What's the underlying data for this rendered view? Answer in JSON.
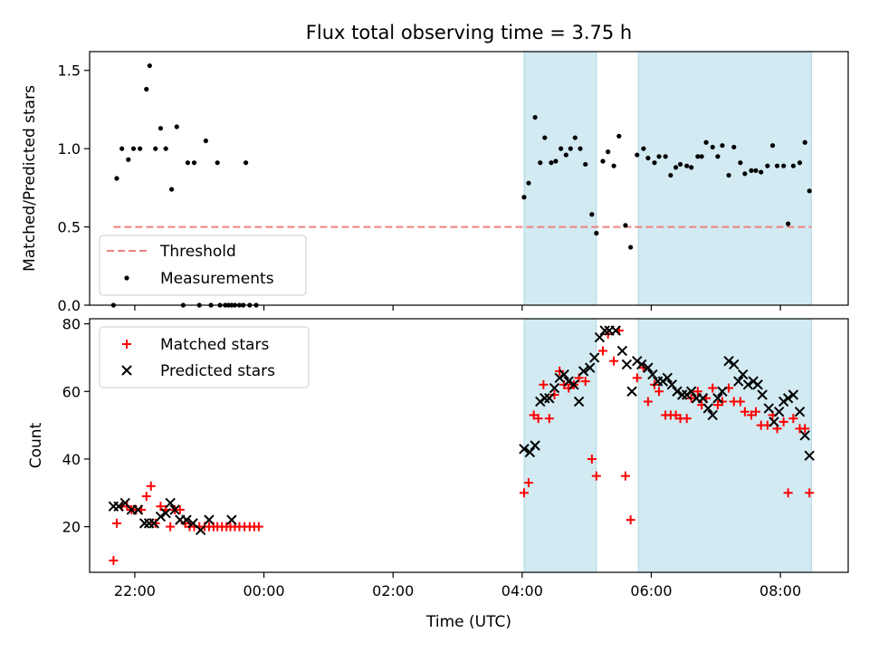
{
  "chart_data": [
    {
      "type": "scatter",
      "title": "Flux total observing time = 3.75 h",
      "ylabel": "Matched/Predicted stars",
      "ylim": [
        0,
        1.62
      ],
      "yticks": [
        0.0,
        0.5,
        1.0,
        1.5
      ],
      "ytick_labels": [
        "0.0",
        "0.5",
        "1.0",
        "1.5"
      ],
      "xlim": [
        -2.7,
        9.05
      ],
      "shaded_ranges": [
        [
          4.03,
          5.15
        ],
        [
          5.8,
          8.48
        ]
      ],
      "shade_color": "#add8e6",
      "threshold": {
        "name": "Threshold",
        "y": 0.5,
        "x_range": [
          -2.33,
          8.48
        ],
        "color": "#f08080"
      },
      "legend_position": "lower-left",
      "series": [
        {
          "name": "Measurements",
          "color": "#000000",
          "marker": "dot",
          "points": [
            [
              -2.33,
              0
            ],
            [
              -2.28,
              0.81
            ],
            [
              -2.2,
              1.0
            ],
            [
              -2.1,
              0.93
            ],
            [
              -2.02,
              1.0
            ],
            [
              -1.92,
              1.0
            ],
            [
              -1.82,
              1.38
            ],
            [
              -1.77,
              1.53
            ],
            [
              -1.68,
              1.0
            ],
            [
              -1.6,
              1.13
            ],
            [
              -1.52,
              1.0
            ],
            [
              -1.43,
              0.74
            ],
            [
              -1.35,
              1.14
            ],
            [
              -1.25,
              0.0
            ],
            [
              -1.18,
              0.91
            ],
            [
              -1.08,
              0.91
            ],
            [
              -1.0,
              0.0
            ],
            [
              -0.9,
              1.05
            ],
            [
              -0.82,
              0.0
            ],
            [
              -0.72,
              0.91
            ],
            [
              -0.68,
              0.0
            ],
            [
              -0.6,
              0.0
            ],
            [
              -0.55,
              0.0
            ],
            [
              -0.5,
              0.0
            ],
            [
              -0.45,
              0.0
            ],
            [
              -0.38,
              0.0
            ],
            [
              -0.32,
              0.0
            ],
            [
              -0.28,
              0.91
            ],
            [
              -0.22,
              0.0
            ],
            [
              -0.12,
              0.0
            ],
            [
              4.03,
              0.69
            ],
            [
              4.1,
              0.78
            ],
            [
              4.2,
              1.2
            ],
            [
              4.28,
              0.91
            ],
            [
              4.35,
              1.07
            ],
            [
              4.45,
              0.91
            ],
            [
              4.52,
              0.92
            ],
            [
              4.6,
              1.0
            ],
            [
              4.68,
              0.96
            ],
            [
              4.75,
              1.0
            ],
            [
              4.82,
              1.07
            ],
            [
              4.9,
              1.0
            ],
            [
              4.98,
              0.9
            ],
            [
              5.08,
              0.58
            ],
            [
              5.15,
              0.46
            ],
            [
              5.25,
              0.92
            ],
            [
              5.33,
              0.98
            ],
            [
              5.42,
              0.89
            ],
            [
              5.5,
              1.08
            ],
            [
              5.6,
              0.51
            ],
            [
              5.68,
              0.37
            ],
            [
              5.78,
              0.96
            ],
            [
              5.88,
              1.0
            ],
            [
              5.95,
              0.94
            ],
            [
              6.05,
              0.91
            ],
            [
              6.12,
              0.95
            ],
            [
              6.22,
              0.95
            ],
            [
              6.3,
              0.83
            ],
            [
              6.38,
              0.88
            ],
            [
              6.45,
              0.9
            ],
            [
              6.55,
              0.89
            ],
            [
              6.62,
              0.88
            ],
            [
              6.72,
              0.95
            ],
            [
              6.78,
              0.95
            ],
            [
              6.85,
              1.04
            ],
            [
              6.95,
              1.01
            ],
            [
              7.03,
              0.95
            ],
            [
              7.1,
              1.02
            ],
            [
              7.2,
              0.83
            ],
            [
              7.28,
              1.01
            ],
            [
              7.38,
              0.91
            ],
            [
              7.45,
              0.84
            ],
            [
              7.55,
              0.86
            ],
            [
              7.62,
              0.86
            ],
            [
              7.7,
              0.85
            ],
            [
              7.8,
              0.89
            ],
            [
              7.88,
              1.02
            ],
            [
              7.95,
              0.89
            ],
            [
              8.05,
              0.89
            ],
            [
              8.12,
              0.52
            ],
            [
              8.2,
              0.89
            ],
            [
              8.3,
              0.91
            ],
            [
              8.38,
              1.04
            ],
            [
              8.45,
              0.73
            ]
          ]
        }
      ]
    },
    {
      "type": "scatter",
      "xlabel": "Time (UTC)",
      "ylabel": "Count",
      "ylim": [
        6.5,
        81.5
      ],
      "yticks": [
        20,
        40,
        60,
        80
      ],
      "ytick_labels": [
        "20",
        "40",
        "60",
        "80"
      ],
      "xlim": [
        -2.7,
        9.05
      ],
      "xticks": [
        -2,
        0,
        2,
        4,
        6,
        8
      ],
      "xtick_labels": [
        "22:00",
        "00:00",
        "02:00",
        "04:00",
        "06:00",
        "08:00"
      ],
      "shaded_ranges": [
        [
          4.03,
          5.15
        ],
        [
          5.8,
          8.48
        ]
      ],
      "shade_color": "#add8e6",
      "legend_position": "upper-left",
      "series": [
        {
          "name": "Matched stars",
          "color": "#ff0000",
          "marker": "plus",
          "points": [
            [
              -2.33,
              10
            ],
            [
              -2.28,
              21
            ],
            [
              -2.2,
              26
            ],
            [
              -2.12,
              26
            ],
            [
              -2.05,
              25
            ],
            [
              -1.98,
              25
            ],
            [
              -1.9,
              25
            ],
            [
              -1.82,
              29
            ],
            [
              -1.75,
              32
            ],
            [
              -1.68,
              21
            ],
            [
              -1.6,
              26
            ],
            [
              -1.52,
              25
            ],
            [
              -1.45,
              20
            ],
            [
              -1.38,
              25
            ],
            [
              -1.3,
              25
            ],
            [
              -1.22,
              21
            ],
            [
              -1.15,
              20
            ],
            [
              -1.08,
              20
            ],
            [
              -1.0,
              20
            ],
            [
              -0.92,
              20
            ],
            [
              -0.85,
              20
            ],
            [
              -0.78,
              20
            ],
            [
              -0.72,
              20
            ],
            [
              -0.65,
              20
            ],
            [
              -0.58,
              20
            ],
            [
              -0.52,
              20
            ],
            [
              -0.45,
              20
            ],
            [
              -0.38,
              20
            ],
            [
              -0.3,
              20
            ],
            [
              -0.22,
              20
            ],
            [
              -0.15,
              20
            ],
            [
              -0.08,
              20
            ],
            [
              4.03,
              30
            ],
            [
              4.1,
              33
            ],
            [
              4.18,
              53
            ],
            [
              4.25,
              52
            ],
            [
              4.33,
              62
            ],
            [
              4.42,
              52
            ],
            [
              4.5,
              59
            ],
            [
              4.58,
              66
            ],
            [
              4.65,
              62
            ],
            [
              4.72,
              61
            ],
            [
              4.8,
              62
            ],
            [
              4.88,
              64
            ],
            [
              4.98,
              63
            ],
            [
              5.08,
              40
            ],
            [
              5.15,
              35
            ],
            [
              5.25,
              72
            ],
            [
              5.33,
              77
            ],
            [
              5.42,
              69
            ],
            [
              5.5,
              78
            ],
            [
              5.6,
              35
            ],
            [
              5.68,
              22
            ],
            [
              5.78,
              64
            ],
            [
              5.88,
              67
            ],
            [
              5.95,
              57
            ],
            [
              6.05,
              62
            ],
            [
              6.12,
              60
            ],
            [
              6.22,
              53
            ],
            [
              6.3,
              53
            ],
            [
              6.38,
              53
            ],
            [
              6.45,
              52
            ],
            [
              6.55,
              52
            ],
            [
              6.62,
              58
            ],
            [
              6.72,
              60
            ],
            [
              6.78,
              56
            ],
            [
              6.85,
              58
            ],
            [
              6.95,
              61
            ],
            [
              7.03,
              56
            ],
            [
              7.1,
              57
            ],
            [
              7.2,
              61
            ],
            [
              7.28,
              57
            ],
            [
              7.38,
              57
            ],
            [
              7.45,
              54
            ],
            [
              7.55,
              53
            ],
            [
              7.62,
              54
            ],
            [
              7.7,
              50
            ],
            [
              7.8,
              50
            ],
            [
              7.88,
              53
            ],
            [
              7.95,
              49
            ],
            [
              8.05,
              51
            ],
            [
              8.12,
              30
            ],
            [
              8.2,
              52
            ],
            [
              8.3,
              49
            ],
            [
              8.38,
              49
            ],
            [
              8.45,
              30
            ]
          ]
        },
        {
          "name": "Predicted stars",
          "color": "#000000",
          "marker": "x",
          "points": [
            [
              -2.33,
              26
            ],
            [
              -2.25,
              26
            ],
            [
              -2.15,
              27
            ],
            [
              -2.05,
              25
            ],
            [
              -1.95,
              25
            ],
            [
              -1.85,
              21
            ],
            [
              -1.78,
              21
            ],
            [
              -1.7,
              21
            ],
            [
              -1.6,
              23
            ],
            [
              -1.52,
              24
            ],
            [
              -1.45,
              27
            ],
            [
              -1.38,
              25
            ],
            [
              -1.3,
              22
            ],
            [
              -1.2,
              22
            ],
            [
              -1.1,
              21
            ],
            [
              -0.98,
              19
            ],
            [
              -0.85,
              22
            ],
            [
              -0.5,
              22
            ],
            [
              4.03,
              43
            ],
            [
              4.12,
              42
            ],
            [
              4.2,
              44
            ],
            [
              4.28,
              57
            ],
            [
              4.35,
              58
            ],
            [
              4.42,
              58
            ],
            [
              4.5,
              61
            ],
            [
              4.58,
              64
            ],
            [
              4.65,
              65
            ],
            [
              4.72,
              63
            ],
            [
              4.8,
              62
            ],
            [
              4.88,
              57
            ],
            [
              4.95,
              66
            ],
            [
              5.05,
              67
            ],
            [
              5.12,
              70
            ],
            [
              5.2,
              76
            ],
            [
              5.28,
              78
            ],
            [
              5.35,
              78
            ],
            [
              5.45,
              78
            ],
            [
              5.55,
              72
            ],
            [
              5.62,
              68
            ],
            [
              5.7,
              60
            ],
            [
              5.78,
              69
            ],
            [
              5.85,
              68
            ],
            [
              5.95,
              67
            ],
            [
              6.02,
              65
            ],
            [
              6.1,
              63
            ],
            [
              6.18,
              63
            ],
            [
              6.25,
              64
            ],
            [
              6.32,
              62
            ],
            [
              6.4,
              60
            ],
            [
              6.48,
              59
            ],
            [
              6.55,
              59
            ],
            [
              6.62,
              60
            ],
            [
              6.7,
              58
            ],
            [
              6.8,
              58
            ],
            [
              6.88,
              55
            ],
            [
              6.95,
              53
            ],
            [
              7.03,
              58
            ],
            [
              7.1,
              60
            ],
            [
              7.2,
              69
            ],
            [
              7.28,
              68
            ],
            [
              7.35,
              63
            ],
            [
              7.42,
              65
            ],
            [
              7.5,
              62
            ],
            [
              7.58,
              63
            ],
            [
              7.65,
              62
            ],
            [
              7.72,
              59
            ],
            [
              7.82,
              55
            ],
            [
              7.9,
              51
            ],
            [
              7.98,
              54
            ],
            [
              8.05,
              57
            ],
            [
              8.12,
              58
            ],
            [
              8.2,
              59
            ],
            [
              8.3,
              54
            ],
            [
              8.38,
              47
            ],
            [
              8.45,
              41
            ]
          ]
        }
      ]
    }
  ]
}
